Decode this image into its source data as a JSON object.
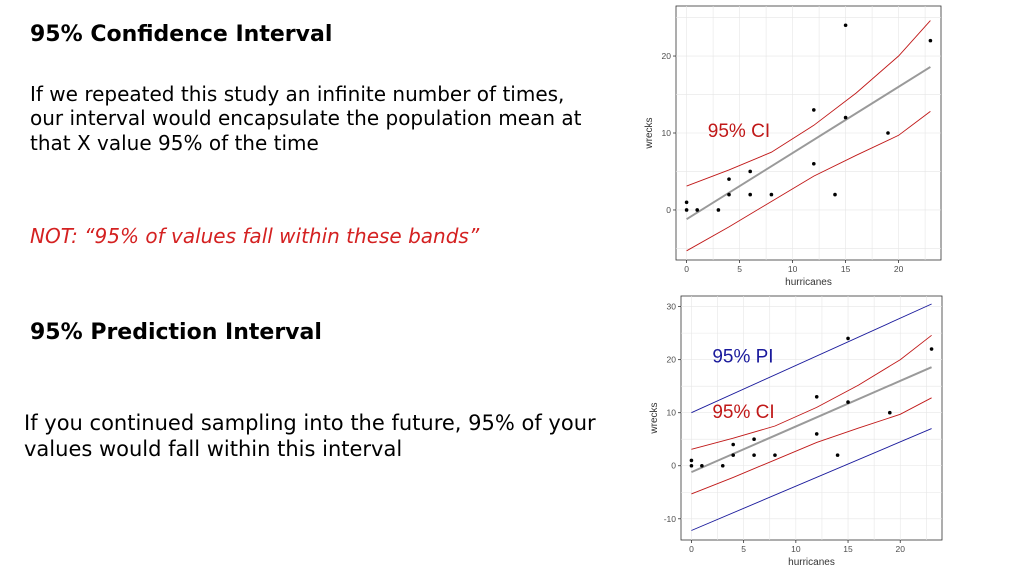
{
  "text": {
    "ci_heading": "95% Confidence Interval",
    "ci_body": "If we repeated this study an infinite number of times, our interval would encapsulate the population mean at that X value 95% of the time",
    "ci_not": "NOT: “95% of values fall within these bands”",
    "pi_heading": "95% Prediction Interval",
    "pi_body": "If you continued sampling into the future, 95% of your values would fall within this interval"
  },
  "colors": {
    "ci_note": "#d42121",
    "ci": "#c01818",
    "pi": "#1a1a9c",
    "fit": "#9a9a9a",
    "grid": "#e6e6e6",
    "points": "#000000"
  },
  "chart_data": [
    {
      "type": "scatter",
      "title": "",
      "xlabel": "hurricanes",
      "ylabel": "wrecks",
      "xlim": [
        -1,
        24
      ],
      "ylim": [
        -6.5,
        26.5
      ],
      "xticks": [
        0,
        5,
        10,
        15,
        20
      ],
      "yticks": [
        0,
        10,
        20
      ],
      "grid": true,
      "points": [
        {
          "x": 0,
          "y": 0
        },
        {
          "x": 0,
          "y": 1
        },
        {
          "x": 1,
          "y": 0
        },
        {
          "x": 3,
          "y": 0
        },
        {
          "x": 4,
          "y": 2
        },
        {
          "x": 4,
          "y": 4
        },
        {
          "x": 6,
          "y": 2
        },
        {
          "x": 6,
          "y": 5
        },
        {
          "x": 8,
          "y": 2
        },
        {
          "x": 12,
          "y": 6
        },
        {
          "x": 12,
          "y": 13
        },
        {
          "x": 14,
          "y": 2
        },
        {
          "x": 15,
          "y": 12
        },
        {
          "x": 15,
          "y": 24
        },
        {
          "x": 19,
          "y": 10
        },
        {
          "x": 23,
          "y": 22
        }
      ],
      "fit": {
        "intercept": -1.2,
        "slope": 0.86
      },
      "ci_band": {
        "x": [
          0,
          4,
          8,
          12,
          16,
          20,
          23
        ],
        "lower": [
          -5.3,
          -2.2,
          1.1,
          4.4,
          7.1,
          9.7,
          12.8
        ],
        "upper": [
          3.1,
          5.2,
          7.5,
          11.0,
          15.2,
          20.0,
          24.6
        ]
      },
      "annotations": [
        {
          "text": "95% CI",
          "x": 2.0,
          "y": 9.5,
          "color": "#c01818"
        }
      ]
    },
    {
      "type": "scatter",
      "title": "",
      "xlabel": "hurricanes",
      "ylabel": "wrecks",
      "xlim": [
        -1,
        24
      ],
      "ylim": [
        -14,
        32
      ],
      "xticks": [
        0,
        5,
        10,
        15,
        20
      ],
      "yticks": [
        -10,
        0,
        10,
        20,
        30
      ],
      "grid": true,
      "points": [
        {
          "x": 0,
          "y": 0
        },
        {
          "x": 0,
          "y": 1
        },
        {
          "x": 1,
          "y": 0
        },
        {
          "x": 3,
          "y": 0
        },
        {
          "x": 4,
          "y": 2
        },
        {
          "x": 4,
          "y": 4
        },
        {
          "x": 6,
          "y": 2
        },
        {
          "x": 6,
          "y": 5
        },
        {
          "x": 8,
          "y": 2
        },
        {
          "x": 12,
          "y": 6
        },
        {
          "x": 12,
          "y": 13
        },
        {
          "x": 14,
          "y": 2
        },
        {
          "x": 15,
          "y": 12
        },
        {
          "x": 15,
          "y": 24
        },
        {
          "x": 19,
          "y": 10
        },
        {
          "x": 23,
          "y": 22
        }
      ],
      "fit": {
        "intercept": -1.2,
        "slope": 0.86
      },
      "ci_band": {
        "x": [
          0,
          4,
          8,
          12,
          16,
          20,
          23
        ],
        "lower": [
          -5.3,
          -2.2,
          1.1,
          4.4,
          7.1,
          9.7,
          12.8
        ],
        "upper": [
          3.1,
          5.2,
          7.5,
          11.0,
          15.2,
          20.0,
          24.6
        ]
      },
      "pi_band": {
        "x": [
          0,
          23
        ],
        "lower": [
          -12.2,
          7.0
        ],
        "upper": [
          10.0,
          30.5
        ]
      },
      "annotations": [
        {
          "text": "95% PI",
          "x": 2.0,
          "y": 19.5,
          "color": "#1a1a9c"
        },
        {
          "text": "95% CI",
          "x": 2.0,
          "y": 9.0,
          "color": "#c01818"
        }
      ]
    }
  ]
}
